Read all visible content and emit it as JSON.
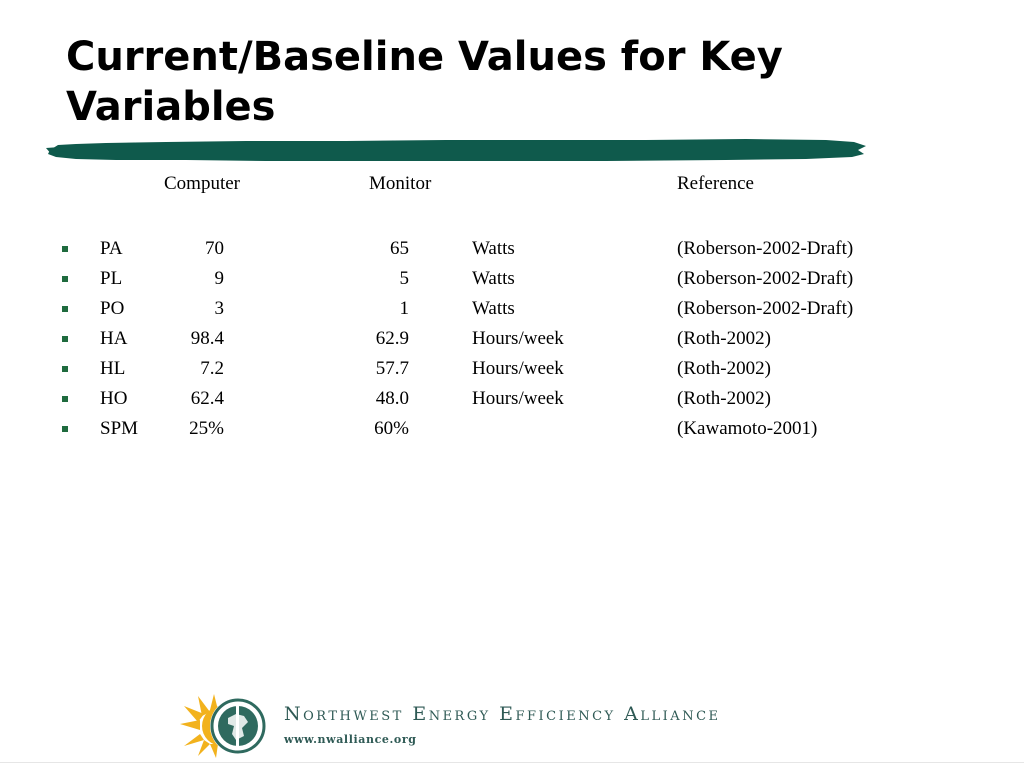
{
  "slide": {
    "title": "Current/Baseline Values for Key Variables"
  },
  "table": {
    "headers": {
      "computer": "Computer",
      "monitor": "Monitor",
      "reference": "Reference"
    },
    "rows": [
      {
        "variable": "PA",
        "computer": "70",
        "monitor": "65",
        "unit": "Watts",
        "reference": "(Roberson-2002-Draft)"
      },
      {
        "variable": "PL",
        "computer": "9",
        "monitor": "5",
        "unit": "Watts",
        "reference": "(Roberson-2002-Draft)"
      },
      {
        "variable": "PO",
        "computer": "3",
        "monitor": "1",
        "unit": "Watts",
        "reference": "(Roberson-2002-Draft)"
      },
      {
        "variable": "HA",
        "computer": "98.4",
        "monitor": "62.9",
        "unit": "Hours/week",
        "reference": "(Roth-2002)"
      },
      {
        "variable": "HL",
        "computer": "7.2",
        "monitor": "57.7",
        "unit": "Hours/week",
        "reference": "(Roth-2002)"
      },
      {
        "variable": "HO",
        "computer": "62.4",
        "monitor": "48.0",
        "unit": "Hours/week",
        "reference": "(Roth-2002)"
      },
      {
        "variable": "SPM",
        "computer": "25%",
        "monitor": "60%",
        "unit": "",
        "reference": "(Kawamoto-2001)"
      }
    ]
  },
  "footer": {
    "organization": "Northwest Energy Efficiency Alliance",
    "url": "www.nwalliance.org"
  },
  "colors": {
    "brush_stroke": "#0f5a4c",
    "logo_sun": "#f2b21d",
    "logo_globe": "#2f6a5f",
    "logo_text": "#2f5a55",
    "bullet": "#1f6b3e"
  },
  "icons": {
    "bullet": "square-bullet-icon",
    "logo": "sun-globe-logo-icon"
  }
}
